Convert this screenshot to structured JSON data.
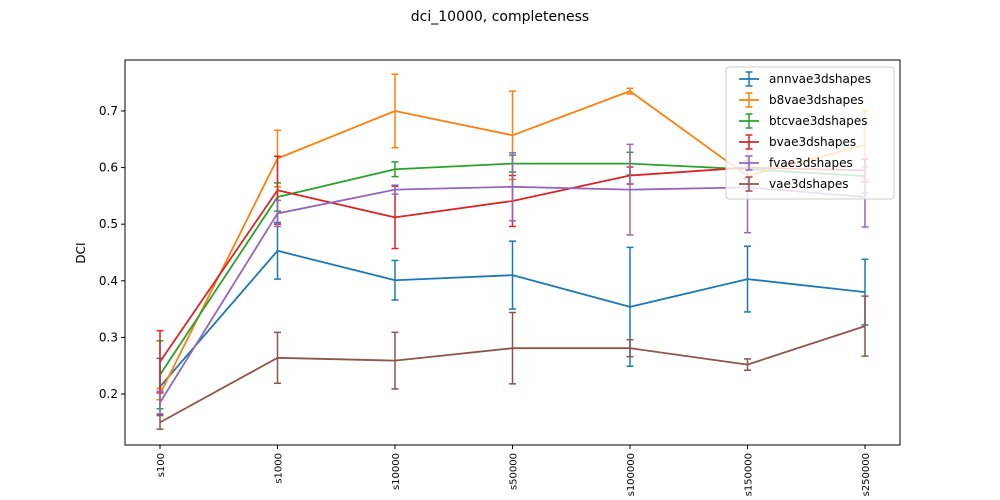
{
  "chart_data": {
    "type": "line",
    "title": "dci_10000, completeness",
    "xlabel": "",
    "ylabel": "DCI",
    "categories": [
      "s100",
      "s1000",
      "s10000",
      "s50000",
      "s100000",
      "s150000",
      "s250000"
    ],
    "ylim": [
      0.11,
      0.79
    ],
    "yticks": [
      0.2,
      0.3,
      0.4,
      0.5,
      0.6,
      0.7
    ],
    "grid": false,
    "legend_position": "top-right",
    "error_bars": true,
    "series": [
      {
        "name": "annvae3dshapes",
        "color": "#1f77b4",
        "values": [
          0.213,
          0.453,
          0.401,
          0.41,
          0.354,
          0.403,
          0.38
        ],
        "errors": [
          0.05,
          0.05,
          0.035,
          0.06,
          0.105,
          0.058,
          0.058
        ]
      },
      {
        "name": "b8vae3dshapes",
        "color": "#ff7f0e",
        "values": [
          0.2,
          0.616,
          0.7,
          0.657,
          0.735,
          0.585,
          0.64
        ],
        "errors": [
          0.01,
          0.05,
          0.065,
          0.078,
          0.005,
          0.02,
          0.06
        ]
      },
      {
        "name": "btcvae3dshapes",
        "color": "#2ca02c",
        "values": [
          0.234,
          0.548,
          0.597,
          0.607,
          0.607,
          0.597,
          0.585
        ],
        "errors": [
          0.06,
          0.025,
          0.013,
          0.015,
          0.02,
          0.015,
          0.03
        ]
      },
      {
        "name": "bvae3dshapes",
        "color": "#d62728",
        "values": [
          0.257,
          0.56,
          0.512,
          0.541,
          0.586,
          0.6,
          0.595
        ],
        "errors": [
          0.055,
          0.06,
          0.055,
          0.045,
          0.015,
          0.02,
          0.02
        ]
      },
      {
        "name": "fvae3dshapes",
        "color": "#9467bd",
        "values": [
          0.185,
          0.519,
          0.561,
          0.566,
          0.561,
          0.565,
          0.548
        ],
        "errors": [
          0.02,
          0.023,
          0.008,
          0.06,
          0.08,
          0.08,
          0.053
        ]
      },
      {
        "name": "vae3dshapes",
        "color": "#8c564b",
        "values": [
          0.15,
          0.264,
          0.259,
          0.281,
          0.281,
          0.252,
          0.32
        ],
        "errors": [
          0.012,
          0.045,
          0.05,
          0.063,
          0.015,
          0.01,
          0.053
        ]
      }
    ]
  }
}
